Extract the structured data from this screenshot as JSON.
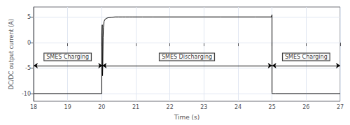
{
  "chart_data": {
    "type": "line",
    "xlabel": "Time (s)",
    "ylabel": "DC/DC output current (A)",
    "color": "#000000",
    "x": [
      18.0,
      19.999,
      20.0,
      20.01,
      20.015,
      20.02,
      20.025,
      20.03,
      20.04,
      20.05,
      20.07,
      20.1,
      20.15,
      20.2,
      20.3,
      20.4,
      20.5,
      20.6,
      20.7,
      20.8,
      20.9,
      21.0,
      21.2,
      21.5,
      22.0,
      22.5,
      23.0,
      23.5,
      24.0,
      24.5,
      24.98,
      24.999,
      25.0,
      25.001,
      25.01,
      25.02,
      25.05,
      25.1,
      25.5,
      26.0,
      27.0
    ],
    "values": [
      -10.0,
      -10.0,
      1.5,
      3.2,
      3.5,
      -6.0,
      -6.5,
      -5.0,
      1.0,
      3.0,
      4.2,
      4.6,
      4.8,
      4.9,
      5.0,
      5.05,
      5.05,
      5.05,
      5.05,
      5.05,
      5.05,
      5.05,
      5.05,
      5.05,
      5.05,
      5.05,
      5.05,
      5.05,
      5.05,
      5.05,
      5.05,
      5.5,
      -9.8,
      -10.0,
      -10.0,
      -10.0,
      -10.0,
      -10.0,
      -10.0,
      -10.0,
      -10.0
    ],
    "xlim": [
      18,
      27
    ],
    "ylim": [
      -11.5,
      7
    ],
    "xticks": [
      18,
      19,
      20,
      21,
      22,
      23,
      24,
      25,
      26,
      27
    ],
    "yticks": [
      -10,
      -5,
      0,
      5
    ],
    "grid": true,
    "annotations": [
      {
        "text": "SMES Charging",
        "x_start": 18.0,
        "x_end": 20.02,
        "arrow_y": -4.5,
        "x": 19.0,
        "y": -3.5
      },
      {
        "text": "SMES Discharging",
        "x_start": 20.02,
        "x_end": 25.0,
        "arrow_y": -4.5,
        "x": 22.5,
        "y": -3.5
      },
      {
        "text": "SMES Charging",
        "x_start": 25.0,
        "x_end": 27.0,
        "arrow_y": -4.5,
        "x": 26.0,
        "y": -3.5
      }
    ]
  }
}
